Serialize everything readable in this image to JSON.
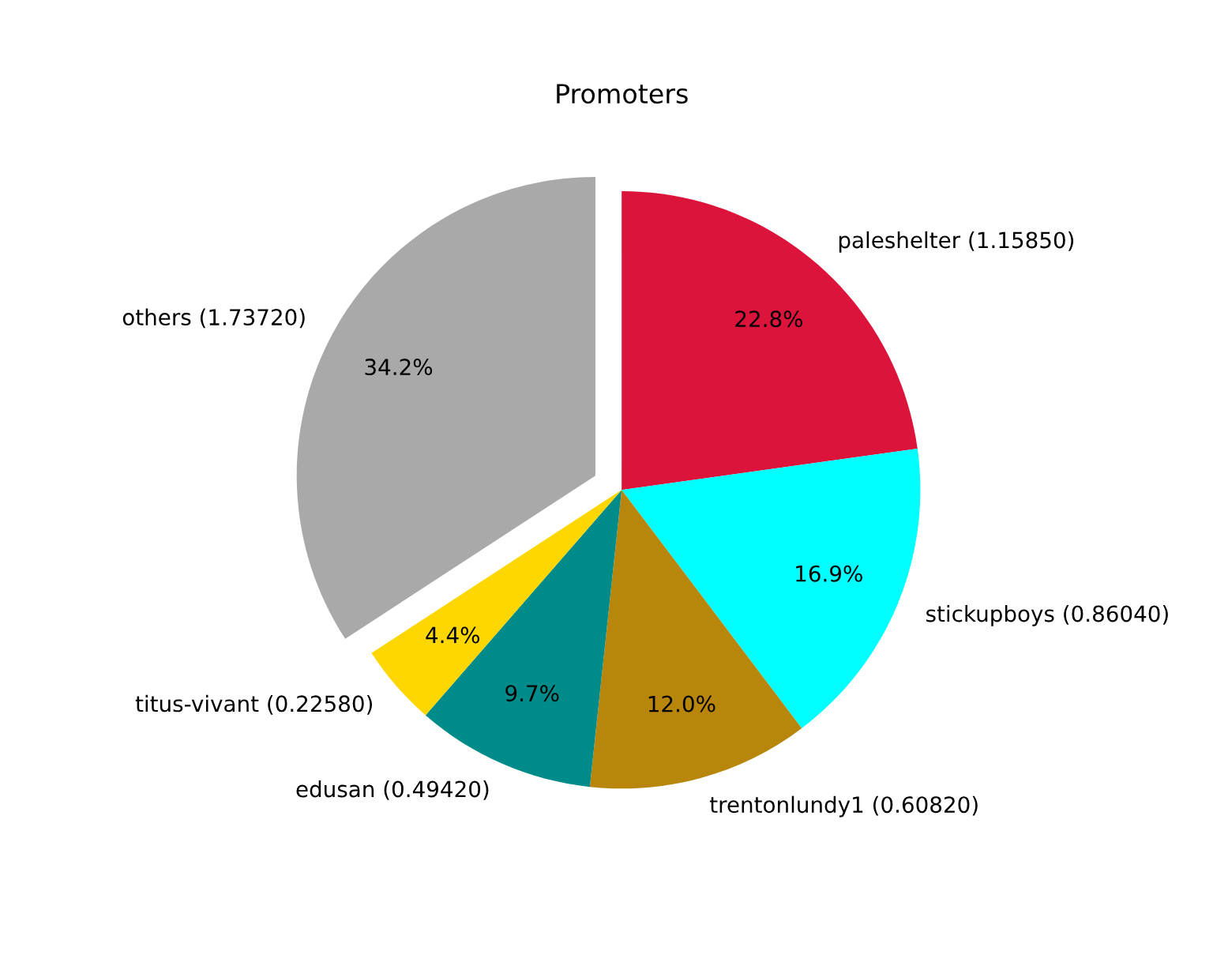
{
  "chart_data": {
    "type": "pie",
    "title": "Promoters",
    "categories": [
      "paleshelter (1.15850)",
      "stickupboys (0.86040)",
      "trentonlundy1 (0.60820)",
      "edusan (0.49420)",
      "titus-vivant (0.22580)",
      "others (1.73720)"
    ],
    "values": [
      22.8,
      16.9,
      12.0,
      9.7,
      4.4,
      34.2
    ],
    "value_labels": [
      "22.8%",
      "16.9%",
      "12.0%",
      "9.7%",
      "4.4%",
      "34.2%"
    ],
    "colors": [
      "#dc143c",
      "#00ffff",
      "#b8860b",
      "#008b8b",
      "#ffd700",
      "#a9a9a9"
    ]
  }
}
